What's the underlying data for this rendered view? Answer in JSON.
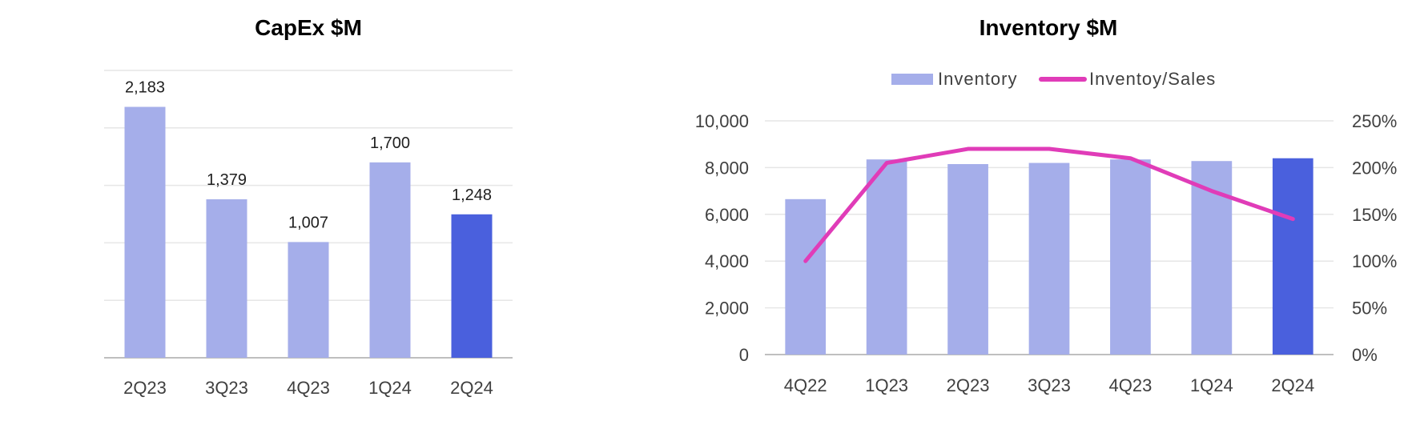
{
  "colors": {
    "bar_default": "#a5aeea",
    "bar_highlight": "#4a60dd",
    "line": "#e03cb8",
    "grid": "#e6e6e6",
    "axis": "#bfbfbf"
  },
  "chart_data": [
    {
      "type": "bar",
      "title": "CapEx $M",
      "categories": [
        "2Q23",
        "3Q23",
        "4Q23",
        "1Q24",
        "2Q24"
      ],
      "values": [
        2183,
        1379,
        1007,
        1700,
        1248
      ],
      "data_labels": [
        "2,183",
        "1,379",
        "1,007",
        "1,700",
        "1,248"
      ],
      "highlight_index": 4,
      "ylim": [
        0,
        2500
      ],
      "y_axis_labels_shown": false,
      "grid": true,
      "legend": "none"
    },
    {
      "type": "bar+line",
      "title": "Inventory $M",
      "categories": [
        "4Q22",
        "1Q23",
        "2Q23",
        "3Q23",
        "4Q23",
        "1Q24",
        "2Q24"
      ],
      "series": [
        {
          "name": "Inventory",
          "type": "bar",
          "axis": "left",
          "values": [
            6650,
            8350,
            8150,
            8200,
            8350,
            8280,
            8400
          ]
        },
        {
          "name": "Inventoy/Sales",
          "type": "line",
          "axis": "right",
          "values": [
            100,
            205,
            220,
            220,
            210,
            175,
            145
          ]
        }
      ],
      "highlight_index": 6,
      "left_axis": {
        "ylim": [
          0,
          10000
        ],
        "ticks": [
          "0",
          "2,000",
          "4,000",
          "6,000",
          "8,000",
          "10,000"
        ]
      },
      "right_axis": {
        "ylim": [
          0,
          250
        ],
        "ticks": [
          "0%",
          "50%",
          "100%",
          "150%",
          "200%",
          "250%"
        ]
      },
      "grid": true,
      "legend": "top-center"
    }
  ]
}
